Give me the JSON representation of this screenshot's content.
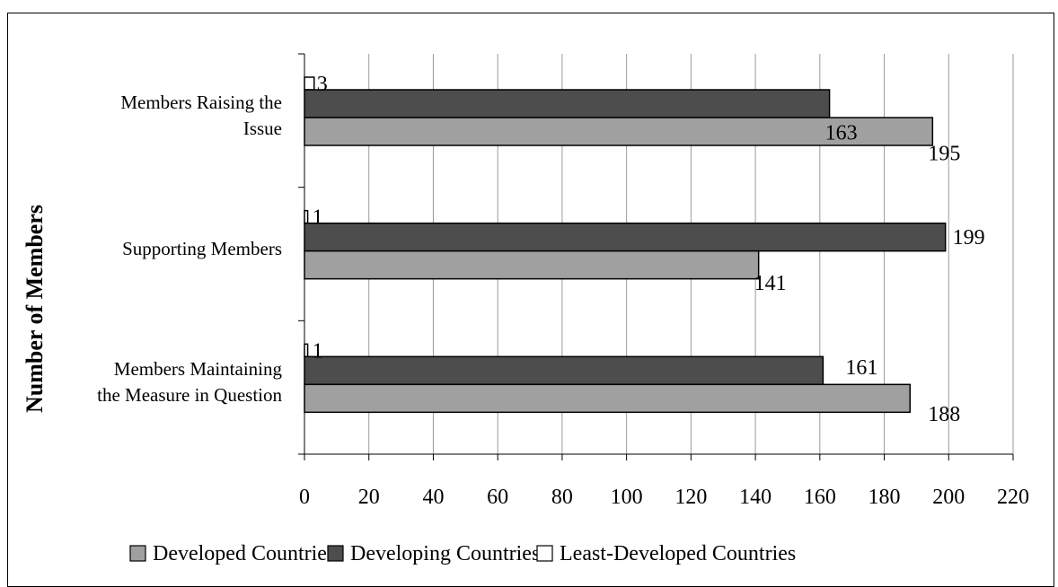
{
  "chart_data": {
    "type": "bar",
    "orientation": "horizontal",
    "categories": [
      "Members Raising the Issue",
      "Supporting Members",
      "Members Maintaining the Measure in Question"
    ],
    "category_lines": [
      [
        "Members Raising the",
        "Issue"
      ],
      [
        "Supporting Members"
      ],
      [
        "Members Maintaining",
        "the Measure in Question"
      ]
    ],
    "series": [
      {
        "name": "Developed Countries",
        "values": [
          195,
          141,
          188
        ],
        "color": "#a0a0a0"
      },
      {
        "name": "Developing Countries",
        "values": [
          163,
          199,
          161
        ],
        "color": "#4d4d4d"
      },
      {
        "name": "Least-Developed Countries",
        "values": [
          3,
          1,
          1
        ],
        "color": "#ffffff"
      }
    ],
    "xlim": [
      0,
      220
    ],
    "xticks": [
      0,
      20,
      40,
      60,
      80,
      100,
      120,
      140,
      160,
      180,
      200,
      220
    ],
    "ylabel": "Number of Members",
    "xlabel": "",
    "title": "",
    "grid": "vertical",
    "legend_position": "bottom"
  }
}
